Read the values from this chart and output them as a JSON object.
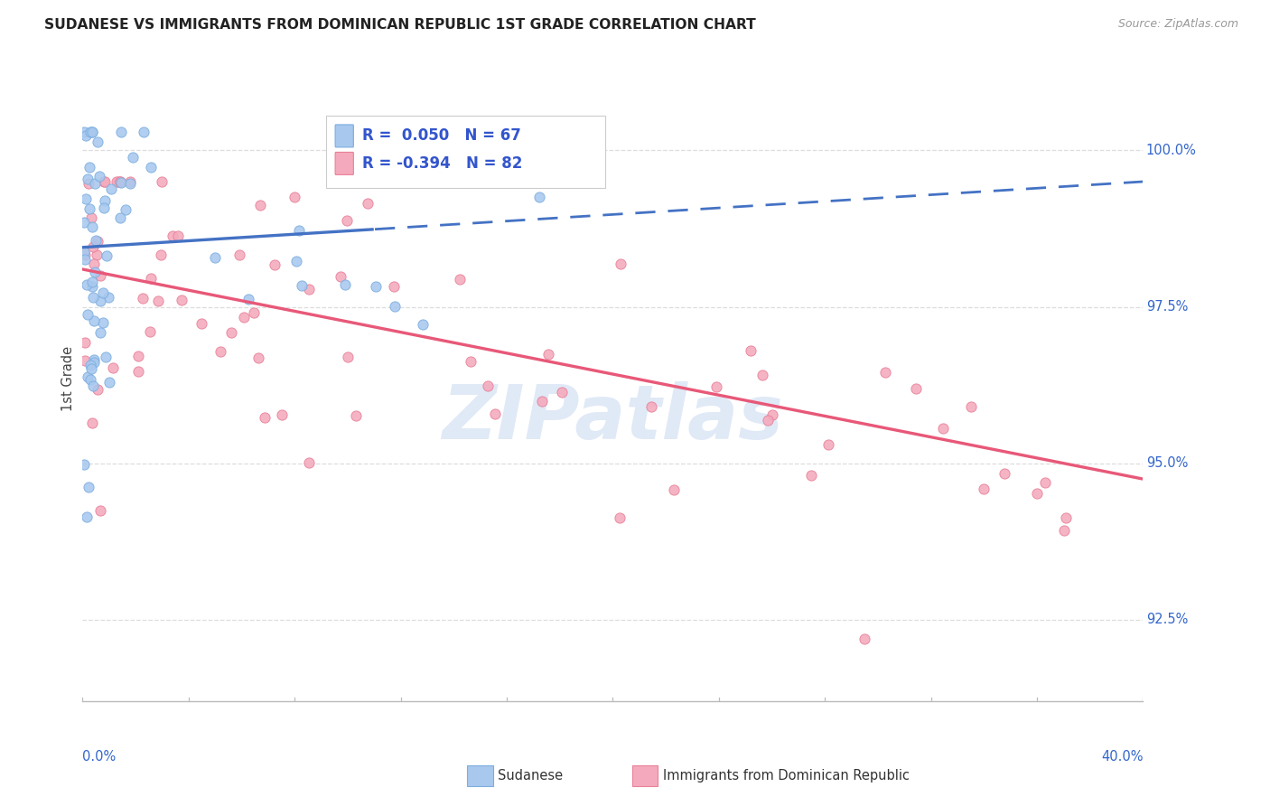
{
  "title": "SUDANESE VS IMMIGRANTS FROM DOMINICAN REPUBLIC 1ST GRADE CORRELATION CHART",
  "source": "Source: ZipAtlas.com",
  "ylabel": "1st Grade",
  "x_min": 0.0,
  "x_max": 40.0,
  "y_min": 91.2,
  "y_max": 101.5,
  "y_ticks": [
    92.5,
    95.0,
    97.5,
    100.0
  ],
  "legend_blue_r": "R =  0.050",
  "legend_blue_n": "N = 67",
  "legend_pink_r": "R = -0.394",
  "legend_pink_n": "N = 82",
  "blue_fill": "#A8C8EE",
  "blue_edge": "#7BAEE0",
  "pink_fill": "#F4AABC",
  "pink_edge": "#E8809A",
  "trend_blue": "#4472C4",
  "trend_pink": "#E85878",
  "legend_text_color": "#3355CC",
  "watermark_color": "#C8D8F0",
  "right_axis_color": "#3366CC",
  "grid_color": "#DDDDDD",
  "title_color": "#222222",
  "bottom_legend_color": "#333333",
  "blue_trend_x0": 0.0,
  "blue_trend_y0": 98.45,
  "blue_trend_x1": 40.0,
  "blue_trend_y1": 99.5,
  "blue_solid_end": 11.0,
  "pink_trend_x0": 0.0,
  "pink_trend_y0": 98.1,
  "pink_trend_x1": 40.0,
  "pink_trend_y1": 94.75
}
